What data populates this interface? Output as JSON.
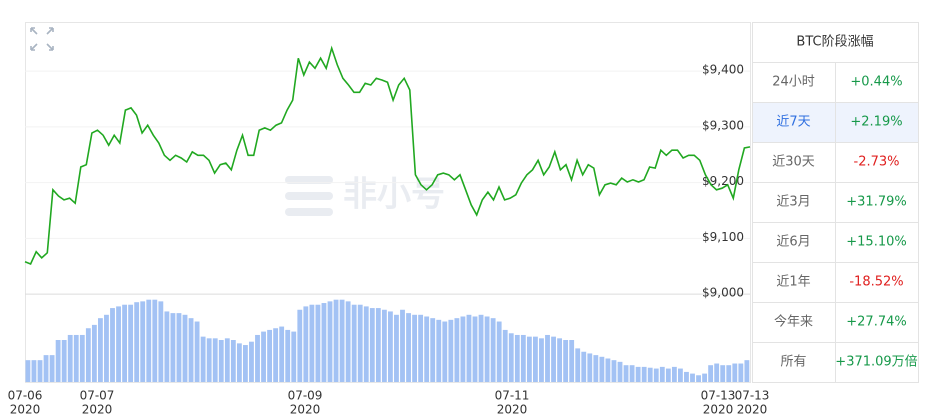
{
  "chart_data": {
    "type": "line",
    "color": "#21a821",
    "watermark": "非小号",
    "ylim": [
      8993,
      9488
    ],
    "yticks": [
      {
        "value": 9000,
        "label": "$9,000"
      },
      {
        "value": 9100,
        "label": "$9,100"
      },
      {
        "value": 9200,
        "label": "$9,200"
      },
      {
        "value": 9300,
        "label": "$9,300"
      },
      {
        "value": 9400,
        "label": "$9,400"
      }
    ],
    "grid": true,
    "values": [
      9058,
      9054,
      9076,
      9065,
      9074,
      9187,
      9176,
      9169,
      9172,
      9163,
      9228,
      9232,
      9289,
      9294,
      9285,
      9267,
      9285,
      9271,
      9330,
      9334,
      9321,
      9289,
      9303,
      9285,
      9271,
      9249,
      9240,
      9249,
      9244,
      9237,
      9255,
      9249,
      9249,
      9240,
      9217,
      9232,
      9235,
      9223,
      9258,
      9285,
      9249,
      9249,
      9294,
      9298,
      9294,
      9303,
      9307,
      9330,
      9348,
      9423,
      9393,
      9416,
      9405,
      9423,
      9405,
      9441,
      9411,
      9387,
      9375,
      9362,
      9362,
      9378,
      9375,
      9387,
      9384,
      9380,
      9348,
      9375,
      9387,
      9366,
      9214,
      9196,
      9187,
      9196,
      9214,
      9217,
      9214,
      9205,
      9214,
      9187,
      9160,
      9142,
      9169,
      9183,
      9169,
      9192,
      9169,
      9172,
      9178,
      9199,
      9214,
      9223,
      9240,
      9214,
      9228,
      9255,
      9223,
      9232,
      9205,
      9240,
      9214,
      9232,
      9226,
      9178,
      9196,
      9199,
      9196,
      9208,
      9201,
      9205,
      9201,
      9205,
      9228,
      9226,
      9258,
      9249,
      9258,
      9258,
      9244,
      9249,
      9249,
      9240,
      9214,
      9196,
      9187,
      9190,
      9196,
      9172,
      9223,
      9262,
      9264
    ],
    "volume": {
      "color": "#a3c2f4",
      "ylim": [
        0,
        100
      ],
      "values": [
        26,
        26,
        26,
        32,
        32,
        50,
        50,
        56,
        56,
        56,
        64,
        68,
        76,
        80,
        88,
        90,
        92,
        92,
        95,
        96,
        98,
        98,
        96,
        84,
        82,
        82,
        80,
        76,
        72,
        54,
        52,
        52,
        50,
        52,
        50,
        46,
        44,
        48,
        56,
        60,
        62,
        64,
        66,
        62,
        60,
        86,
        90,
        92,
        92,
        94,
        96,
        98,
        98,
        96,
        92,
        92,
        90,
        88,
        88,
        86,
        84,
        80,
        86,
        82,
        80,
        80,
        78,
        76,
        74,
        72,
        74,
        76,
        78,
        80,
        78,
        80,
        78,
        76,
        72,
        62,
        58,
        56,
        56,
        54,
        54,
        52,
        56,
        54,
        52,
        50,
        50,
        40,
        36,
        34,
        32,
        30,
        28,
        26,
        24,
        20,
        20,
        18,
        18,
        17,
        16,
        18,
        16,
        18,
        16,
        12,
        10,
        8,
        10,
        20,
        22,
        20,
        20,
        22,
        22,
        26
      ]
    },
    "x_labels": [
      {
        "date": "07-06",
        "year": "2020"
      },
      {
        "date": "07-07",
        "year": "2020"
      },
      {
        "date": "07-09",
        "year": "2020"
      },
      {
        "date": "07-11",
        "year": "2020"
      },
      {
        "date": "07-13",
        "year": "2020"
      },
      {
        "date": "07-13",
        "year": "2020"
      }
    ]
  },
  "table": {
    "title": "BTC阶段涨幅",
    "selected": 1,
    "up_color": "#17994a",
    "down_color": "#e0201f",
    "rows": [
      [
        "24小时",
        "+0.44%"
      ],
      [
        "近7天",
        "+2.19%"
      ],
      [
        "近30天",
        "-2.73%"
      ],
      [
        "近3月",
        "+31.79%"
      ],
      [
        "近6月",
        "+15.10%"
      ],
      [
        "近1年",
        "-18.52%"
      ],
      [
        "今年来",
        "+27.74%"
      ],
      [
        "所有",
        "+371.09万倍"
      ]
    ]
  }
}
